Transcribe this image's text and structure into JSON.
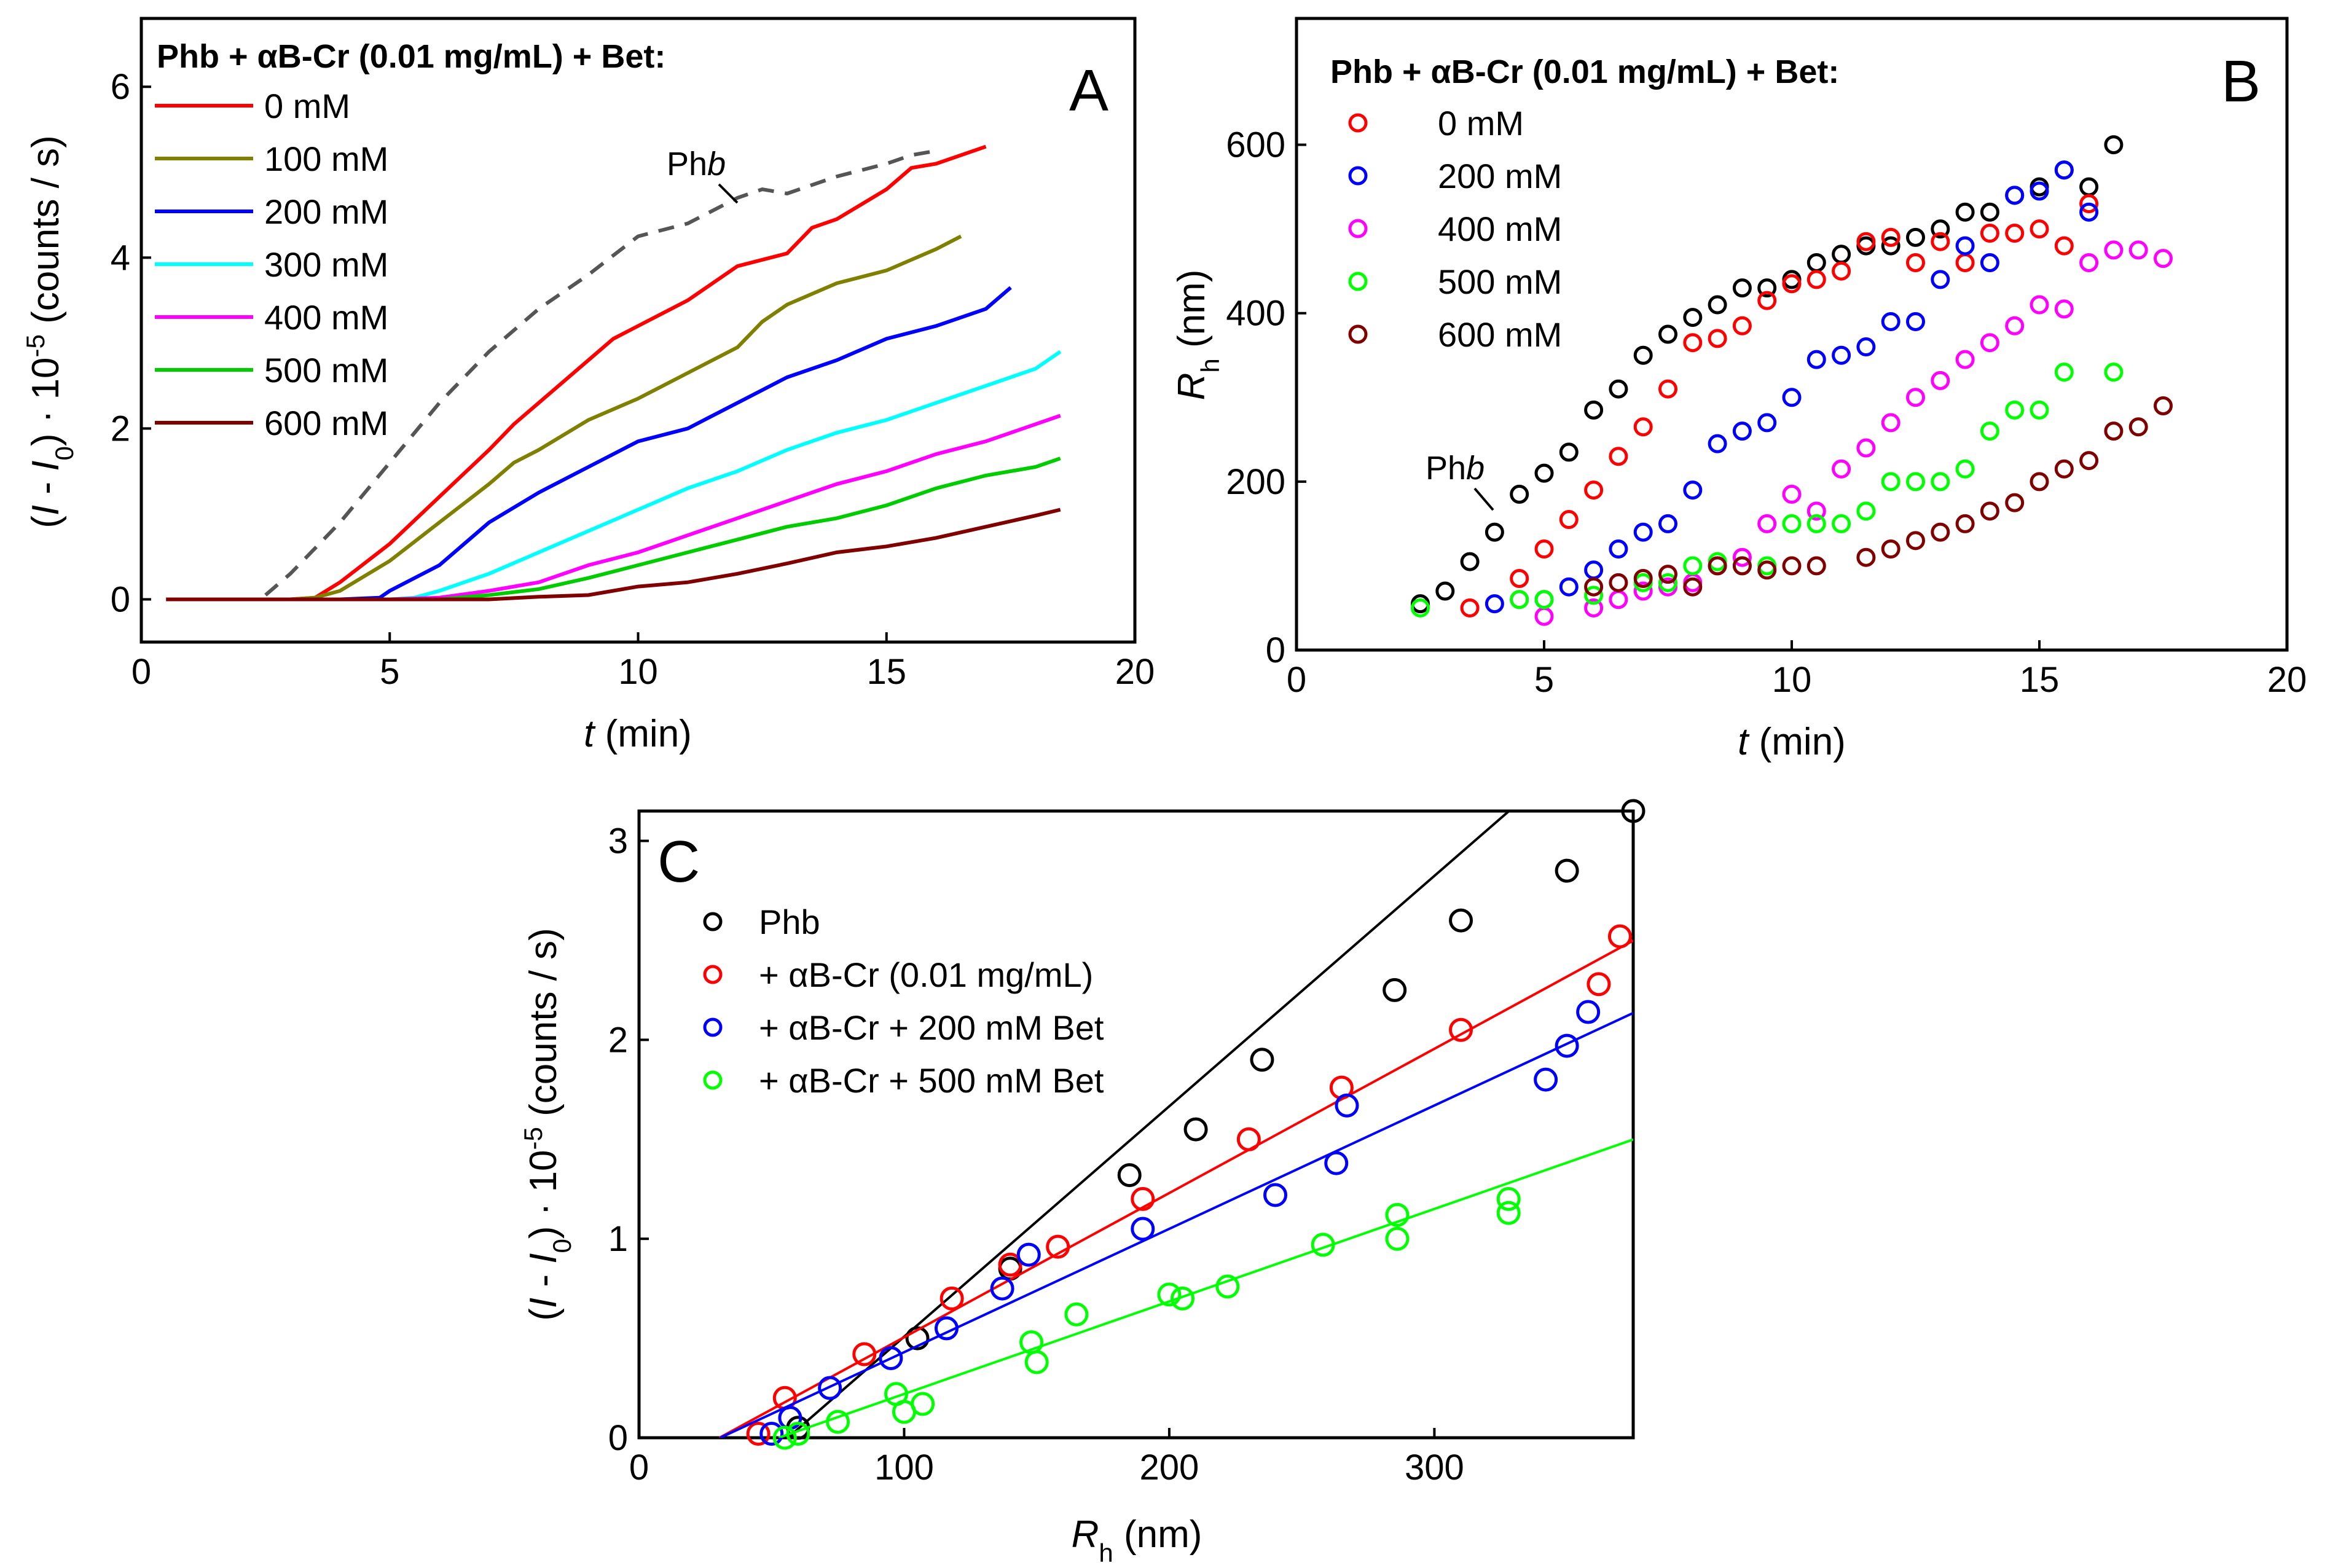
{
  "chart_data": [
    {
      "panel": "A",
      "type": "line",
      "legend_title": "Phb + αB-Cr (0.01 mg/mL) + Bet:",
      "xlabel": "t (min)",
      "ylabel": "(I - I0) · 10^-5 (counts / s)",
      "xlim": [
        0,
        20
      ],
      "ylim": [
        -0.5,
        6.8
      ],
      "xticks": [
        0,
        5,
        10,
        15,
        20
      ],
      "yticks": [
        0,
        2,
        4,
        6
      ],
      "legend_position": "top-left",
      "series": [
        {
          "name": "0 mM",
          "color": "#ff0000",
          "dashed": false,
          "x": [
            0.5,
            1,
            2,
            3,
            3.5,
            4,
            5,
            6,
            7,
            7.5,
            8,
            9,
            9.5,
            10,
            11,
            12,
            13,
            13.5,
            14,
            15,
            15.5,
            16,
            17
          ],
          "y": [
            0,
            0,
            0,
            0,
            0.02,
            0.2,
            0.65,
            1.2,
            1.75,
            2.05,
            2.3,
            2.8,
            3.05,
            3.2,
            3.5,
            3.9,
            4.05,
            4.35,
            4.45,
            4.8,
            5.05,
            5.1,
            5.3
          ]
        },
        {
          "name": "100 mM",
          "color": "#808000",
          "dashed": false,
          "x": [
            0.5,
            1,
            2,
            3,
            3.5,
            4,
            5,
            6,
            7,
            7.5,
            8,
            9,
            10,
            11,
            12,
            12.5,
            13,
            14,
            15,
            16,
            16.5
          ],
          "y": [
            0,
            0,
            0,
            0,
            0.02,
            0.1,
            0.45,
            0.9,
            1.35,
            1.6,
            1.75,
            2.1,
            2.35,
            2.65,
            2.95,
            3.25,
            3.45,
            3.7,
            3.85,
            4.1,
            4.25
          ]
        },
        {
          "name": "200 mM",
          "color": "#0000ff",
          "dashed": false,
          "x": [
            0.5,
            1,
            2,
            3,
            4,
            4.8,
            5,
            6,
            7,
            8,
            9,
            10,
            11,
            12,
            13,
            14,
            15,
            16,
            17,
            17.5
          ],
          "y": [
            0,
            0,
            0,
            0,
            0,
            0.02,
            0.1,
            0.4,
            0.9,
            1.25,
            1.55,
            1.85,
            2.0,
            2.3,
            2.6,
            2.8,
            3.05,
            3.2,
            3.4,
            3.65
          ]
        },
        {
          "name": "300 mM",
          "color": "#00ffff",
          "dashed": false,
          "x": [
            0.5,
            1,
            2,
            3,
            4,
            5,
            5.5,
            6,
            7,
            8,
            9,
            10,
            11,
            12,
            13,
            14,
            15,
            16,
            17,
            18,
            18.5
          ],
          "y": [
            0,
            0,
            0,
            0,
            0,
            0,
            0.02,
            0.1,
            0.3,
            0.55,
            0.8,
            1.05,
            1.3,
            1.5,
            1.75,
            1.95,
            2.1,
            2.3,
            2.5,
            2.7,
            2.9
          ]
        },
        {
          "name": "400 mM",
          "color": "#ff00ff",
          "dashed": false,
          "x": [
            0.5,
            1,
            2,
            3,
            4,
            5,
            6,
            7,
            8,
            9,
            10,
            11,
            12,
            13,
            14,
            15,
            16,
            17,
            18,
            18.5
          ],
          "y": [
            0,
            0,
            0,
            0,
            0,
            0,
            0.02,
            0.1,
            0.2,
            0.4,
            0.55,
            0.75,
            0.95,
            1.15,
            1.35,
            1.5,
            1.7,
            1.85,
            2.05,
            2.15
          ]
        },
        {
          "name": "500 mM",
          "color": "#00cc00",
          "dashed": false,
          "x": [
            0.5,
            1,
            2,
            3,
            4,
            5,
            6,
            7,
            8,
            9,
            10,
            11,
            12,
            13,
            14,
            15,
            16,
            17,
            18,
            18.5
          ],
          "y": [
            0,
            0,
            0,
            0,
            0,
            0,
            0,
            0.05,
            0.12,
            0.25,
            0.4,
            0.55,
            0.7,
            0.85,
            0.95,
            1.1,
            1.3,
            1.45,
            1.55,
            1.65
          ]
        },
        {
          "name": "600 mM",
          "color": "#800000",
          "dashed": false,
          "x": [
            0.5,
            1,
            2,
            3,
            4,
            5,
            6,
            7,
            8,
            9,
            10,
            11,
            12,
            13,
            14,
            15,
            16,
            17,
            18,
            18.5
          ],
          "y": [
            0,
            0,
            0,
            0,
            0,
            0,
            0,
            0,
            0.03,
            0.05,
            0.15,
            0.2,
            0.3,
            0.42,
            0.55,
            0.62,
            0.72,
            0.85,
            0.98,
            1.05
          ]
        },
        {
          "name": "Phb",
          "color": "#555555",
          "dashed": true,
          "x": [
            2.5,
            3,
            3.5,
            4,
            5,
            6,
            7,
            8,
            9,
            10,
            11,
            12,
            12.5,
            13,
            14,
            15,
            15.5,
            16
          ],
          "y": [
            0.05,
            0.3,
            0.6,
            0.9,
            1.6,
            2.3,
            2.9,
            3.4,
            3.8,
            4.25,
            4.4,
            4.7,
            4.8,
            4.75,
            4.95,
            5.1,
            5.2,
            5.25
          ]
        }
      ]
    },
    {
      "panel": "B",
      "type": "scatter",
      "legend_title": "Phb + αB-Cr (0.01 mg/mL) + Bet:",
      "xlabel": "t (min)",
      "ylabel": "Rh (nm)",
      "xlim": [
        0,
        20
      ],
      "ylim": [
        0,
        750
      ],
      "xticks": [
        0,
        5,
        10,
        15,
        20
      ],
      "yticks": [
        0,
        200,
        400,
        600
      ],
      "legend_position": "top-left",
      "series": [
        {
          "name": "Phb",
          "color": "#000000",
          "x": [
            2.5,
            3,
            3.5,
            4,
            4.5,
            5,
            5.5,
            6,
            6.5,
            7,
            7.5,
            8,
            8.5,
            9,
            9.5,
            10,
            10.5,
            11,
            11.5,
            12,
            12.5,
            13,
            13.5,
            14,
            14.5,
            15,
            15.5,
            16,
            16.5
          ],
          "y": [
            55,
            70,
            105,
            140,
            185,
            210,
            235,
            285,
            310,
            350,
            375,
            395,
            410,
            430,
            430,
            440,
            460,
            470,
            480,
            480,
            490,
            500,
            520,
            520,
            540,
            550,
            570,
            550,
            600
          ]
        },
        {
          "name": "0 mM",
          "color": "#ff0000",
          "x": [
            3.5,
            4.5,
            5,
            5.5,
            6,
            6.5,
            7,
            7.5,
            8,
            8.5,
            9,
            9.5,
            10,
            10.5,
            11,
            11.5,
            12,
            12.5,
            13,
            13.5,
            14,
            14.5,
            15,
            15.5,
            16
          ],
          "y": [
            50,
            85,
            120,
            155,
            190,
            230,
            265,
            310,
            365,
            370,
            385,
            415,
            435,
            440,
            450,
            485,
            490,
            460,
            485,
            460,
            495,
            495,
            500,
            480,
            530
          ]
        },
        {
          "name": "200 mM",
          "color": "#0000ff",
          "x": [
            4,
            5,
            5.5,
            6,
            6.5,
            7,
            7.5,
            8,
            8.5,
            9,
            9.5,
            10,
            10.5,
            11,
            11.5,
            12,
            12.5,
            13,
            13.5,
            14,
            14.5,
            15,
            15.5,
            16
          ],
          "y": [
            55,
            60,
            75,
            95,
            120,
            140,
            150,
            190,
            245,
            260,
            270,
            300,
            345,
            350,
            360,
            390,
            390,
            440,
            480,
            460,
            540,
            545,
            570,
            520
          ]
        },
        {
          "name": "400 mM",
          "color": "#ff00ff",
          "x": [
            4.5,
            5,
            6,
            6.5,
            7,
            7.5,
            8,
            8.5,
            9,
            9.5,
            10,
            10.5,
            11,
            11.5,
            12,
            12.5,
            13,
            13.5,
            14,
            14.5,
            15,
            15.5,
            16,
            16.5,
            17,
            17.5
          ],
          "y": [
            60,
            40,
            50,
            60,
            70,
            75,
            80,
            100,
            110,
            150,
            185,
            165,
            215,
            240,
            270,
            300,
            320,
            345,
            365,
            385,
            410,
            405,
            460,
            475,
            475,
            465
          ]
        },
        {
          "name": "500 mM",
          "color": "#00ff00",
          "x": [
            2.5,
            4.5,
            5,
            6,
            7,
            7.5,
            8,
            8.5,
            9,
            9.5,
            10,
            10.5,
            11,
            11.5,
            12,
            12.5,
            13,
            13.5,
            14,
            14.5,
            15,
            15.5,
            16.5
          ],
          "y": [
            50,
            60,
            60,
            65,
            80,
            80,
            100,
            105,
            100,
            100,
            150,
            150,
            150,
            165,
            200,
            200,
            200,
            215,
            260,
            285,
            285,
            330,
            330
          ]
        },
        {
          "name": "600 mM",
          "color": "#800000",
          "x": [
            6,
            6.5,
            7,
            7.5,
            8,
            8.5,
            9,
            9.5,
            10,
            10.5,
            11.5,
            12,
            12.5,
            13,
            13.5,
            14,
            14.5,
            15,
            15.5,
            16,
            16.5,
            17,
            17.5
          ],
          "y": [
            75,
            80,
            85,
            90,
            75,
            100,
            100,
            95,
            100,
            100,
            110,
            120,
            130,
            140,
            150,
            165,
            175,
            200,
            215,
            225,
            260,
            265,
            290
          ]
        }
      ],
      "annotations": [
        {
          "text": "Phb",
          "x": 4,
          "y": 140
        }
      ]
    },
    {
      "panel": "C",
      "type": "scatter",
      "xlabel": "Rh (nm)",
      "ylabel": "(I - I0) · 10^-5 (counts / s)",
      "xlim": [
        0,
        375
      ],
      "ylim": [
        0,
        3.15
      ],
      "xticks": [
        0,
        100,
        200,
        300
      ],
      "yticks": [
        0,
        1,
        2,
        3
      ],
      "legend_position": "top-left",
      "series": [
        {
          "name": "Phb",
          "color": "#000000",
          "x": [
            60,
            105,
            140,
            185,
            210,
            235,
            285,
            310,
            350,
            375
          ],
          "y": [
            0.05,
            0.5,
            0.85,
            1.32,
            1.55,
            1.9,
            2.25,
            2.6,
            2.85,
            3.15
          ],
          "fit": {
            "slope": 0.01158,
            "intercept": -0.65
          }
        },
        {
          "name": "+ αB-Cr (0.01 mg/mL)",
          "color": "#ff0000",
          "x": [
            45,
            55,
            85,
            118,
            140,
            158,
            190,
            230,
            265,
            310,
            362,
            370
          ],
          "y": [
            0.02,
            0.2,
            0.42,
            0.7,
            0.87,
            0.96,
            1.2,
            1.5,
            1.76,
            2.05,
            2.28,
            2.52
          ],
          "fit": {
            "slope": 0.00725,
            "intercept": -0.22
          }
        },
        {
          "name": "+ αB-Cr + 200 mM Bet",
          "color": "#0000ff",
          "x": [
            50,
            57,
            72,
            95,
            116,
            137,
            147,
            190,
            240,
            263,
            267,
            342,
            350,
            358
          ],
          "y": [
            0.02,
            0.1,
            0.25,
            0.4,
            0.55,
            0.75,
            0.92,
            1.05,
            1.22,
            1.38,
            1.67,
            1.8,
            1.97,
            2.14
          ],
          "fit": {
            "slope": 0.0062,
            "intercept": -0.19
          }
        },
        {
          "name": "+ αB-Cr + 500 mM Bet",
          "color": "#00ff00",
          "x": [
            55,
            60,
            75,
            97,
            100,
            107,
            148,
            150,
            165,
            200,
            205,
            222,
            258,
            286,
            286,
            328,
            328
          ],
          "y": [
            0.0,
            0.02,
            0.08,
            0.22,
            0.13,
            0.17,
            0.48,
            0.38,
            0.62,
            0.72,
            0.7,
            0.76,
            0.97,
            1.12,
            1.0,
            1.2,
            1.13
          ],
          "fit": {
            "slope": 0.00465,
            "intercept": -0.245
          }
        }
      ]
    }
  ]
}
